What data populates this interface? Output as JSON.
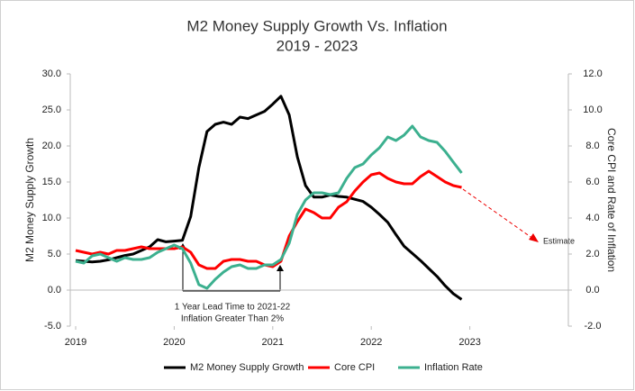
{
  "chart_data": {
    "type": "line",
    "title": "M2 Money Supply Growth Vs. Inflation",
    "subtitle": "2019 - 2023",
    "y_label": "M2 Money Supply Growth",
    "y2_label": "Core CPI and Rate of Inflation",
    "annotations": [
      "1 Year Lead Time to 2021-22",
      "Inflation Greater Than 2%",
      "Estimate"
    ],
    "x": [
      2019,
      2019.083,
      2019.167,
      2019.25,
      2019.333,
      2019.417,
      2019.5,
      2019.583,
      2019.667,
      2019.75,
      2019.833,
      2019.917,
      2020,
      2020.083,
      2020.167,
      2020.25,
      2020.333,
      2020.417,
      2020.5,
      2020.583,
      2020.667,
      2020.75,
      2020.833,
      2020.917,
      2021,
      2021.083,
      2021.167,
      2021.25,
      2021.333,
      2021.417,
      2021.5,
      2021.583,
      2021.667,
      2021.75,
      2021.833,
      2021.917,
      2022,
      2022.083,
      2022.167,
      2022.25,
      2022.333,
      2022.417,
      2022.5,
      2022.583,
      2022.667,
      2022.75,
      2022.833,
      2022.917
    ],
    "series": [
      {
        "name": "M2 Money Supply Growth",
        "color": "#000000",
        "axis": "y",
        "values": [
          4.1,
          4.0,
          3.9,
          4.0,
          4.2,
          4.5,
          4.8,
          5.0,
          5.5,
          6.0,
          7.0,
          6.7,
          6.8,
          6.9,
          10.2,
          17,
          22,
          23,
          23.3,
          23,
          24,
          23.8,
          24.3,
          24.8,
          25.8,
          26.9,
          24.3,
          18.5,
          14.5,
          12.9,
          12.9,
          13.2,
          13,
          12.9,
          12.6,
          12.3,
          11.5,
          10.5,
          9.4,
          7.7,
          6.1,
          5.1,
          4.1,
          3.0,
          1.9,
          0.6,
          -0.5,
          -1.3
        ]
      },
      {
        "name": "Core CPI",
        "color": "#ff0000",
        "axis": "y2",
        "values": [
          2.2,
          2.1,
          2.0,
          2.1,
          2.0,
          2.2,
          2.2,
          2.3,
          2.4,
          2.3,
          2.3,
          2.3,
          2.3,
          2.4,
          2.1,
          1.4,
          1.2,
          1.2,
          1.6,
          1.7,
          1.7,
          1.6,
          1.6,
          1.4,
          1.3,
          1.6,
          3.0,
          3.8,
          4.5,
          4.3,
          4.0,
          4.0,
          4.6,
          4.9,
          5.5,
          6.0,
          6.4,
          6.5,
          6.2,
          6.0,
          5.9,
          5.9,
          6.3,
          6.6,
          6.3,
          6.0,
          5.8,
          5.7
        ]
      },
      {
        "name": "Inflation Rate",
        "color": "#3cb08f",
        "axis": "y2",
        "values": [
          1.6,
          1.5,
          1.9,
          2.0,
          1.8,
          1.6,
          1.8,
          1.7,
          1.7,
          1.8,
          2.1,
          2.3,
          2.5,
          2.3,
          1.5,
          0.3,
          0.1,
          0.6,
          1.0,
          1.3,
          1.4,
          1.2,
          1.2,
          1.4,
          1.4,
          1.7,
          2.6,
          4.2,
          5.0,
          5.4,
          5.4,
          5.3,
          5.4,
          6.2,
          6.8,
          7.0,
          7.5,
          7.9,
          8.5,
          8.3,
          8.6,
          9.1,
          8.5,
          8.3,
          8.2,
          7.7,
          7.1,
          6.5
        ]
      }
    ],
    "xlim": [
      2019,
      2024
    ],
    "xticks": [
      2019,
      2020,
      2021,
      2022,
      2023
    ],
    "ylim": [
      -5,
      30
    ],
    "yticks": [
      {
        "value": -5,
        "label": "-5.0"
      },
      {
        "value": 0,
        "label": "0.0"
      },
      {
        "value": 5,
        "label": "5.0"
      },
      {
        "value": 10,
        "label": "10.0"
      },
      {
        "value": 15,
        "label": "15.0"
      },
      {
        "value": 20,
        "label": "20.0"
      },
      {
        "value": 25,
        "label": "25.0"
      },
      {
        "value": 30,
        "label": "30.0"
      }
    ],
    "y2lim": [
      -2,
      12
    ],
    "y2ticks": [
      {
        "value": -2,
        "label": "-2.0"
      },
      {
        "value": 0,
        "label": "0.0"
      },
      {
        "value": 2,
        "label": "2.0"
      },
      {
        "value": 4,
        "label": "4.0"
      },
      {
        "value": 6,
        "label": "6.0"
      },
      {
        "value": 8,
        "label": "8.0"
      },
      {
        "value": 10,
        "label": "10.0"
      },
      {
        "value": 12,
        "label": "12.0"
      }
    ],
    "legend": "bottom"
  }
}
